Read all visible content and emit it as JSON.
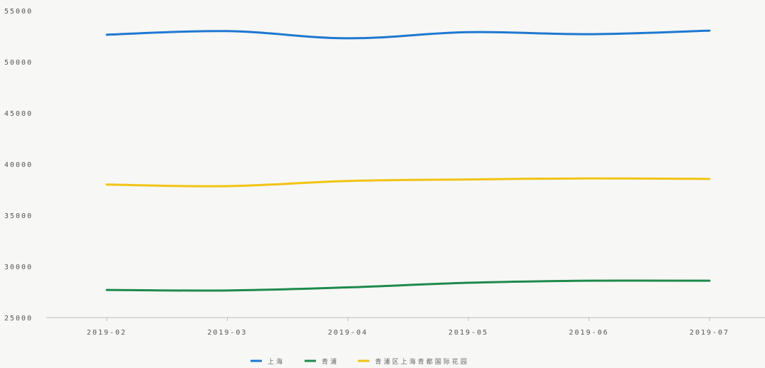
{
  "chart_data": {
    "type": "line",
    "categories": [
      "2019-02",
      "2019-03",
      "2019-04",
      "2019-05",
      "2019-06",
      "2019-07"
    ],
    "series": [
      {
        "name": "上海",
        "color": "#1f78d1",
        "values": [
          52650,
          53000,
          52300,
          52900,
          52700,
          53050
        ]
      },
      {
        "name": "青浦",
        "color": "#1e8a4c",
        "values": [
          27700,
          27650,
          27950,
          28400,
          28600,
          28600
        ]
      },
      {
        "name": "青浦区上海青都国际花园",
        "color": "#f2c313",
        "values": [
          38000,
          37850,
          38350,
          38500,
          38600,
          38550
        ]
      }
    ],
    "yticks": [
      25000,
      30000,
      35000,
      40000,
      45000,
      50000,
      55000
    ],
    "ylim": [
      25000,
      55000
    ],
    "grid": false,
    "legend": "bottom-center"
  }
}
